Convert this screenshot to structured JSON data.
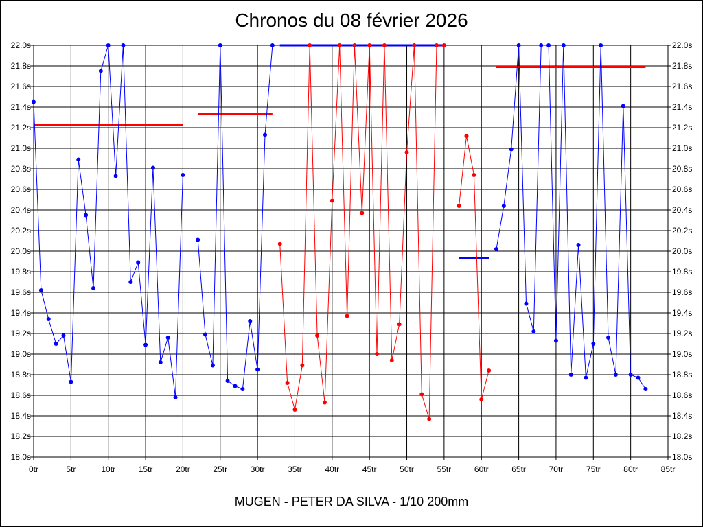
{
  "chart_data": {
    "type": "line",
    "title": "Chronos du 08 février 2026",
    "subtitle": "MUGEN - PETER DA SILVA - 1/10 200mm",
    "xlabel": "",
    "ylabel": "",
    "xlim": [
      0,
      85
    ],
    "ylim": [
      18.0,
      22.0
    ],
    "grid": true,
    "x_ticks": [
      "0tr",
      "5tr",
      "10tr",
      "15tr",
      "20tr",
      "25tr",
      "30tr",
      "35tr",
      "40tr",
      "45tr",
      "50tr",
      "55tr",
      "60tr",
      "65tr",
      "70tr",
      "75tr",
      "80tr",
      "85tr"
    ],
    "y_ticks": [
      "18.0s",
      "18.2s",
      "18.4s",
      "18.6s",
      "18.8s",
      "19.0s",
      "19.2s",
      "19.4s",
      "19.6s",
      "19.8s",
      "20.0s",
      "20.2s",
      "20.4s",
      "20.6s",
      "20.8s",
      "21.0s",
      "21.2s",
      "21.4s",
      "21.6s",
      "21.8s",
      "22.0s"
    ],
    "series": [
      {
        "color": "#0000ff",
        "x": [
          0,
          1,
          2,
          3,
          4,
          5,
          6,
          7,
          8,
          9,
          10,
          11,
          12,
          13,
          14,
          15,
          16,
          17,
          18,
          19,
          20
        ],
        "values": [
          21.45,
          19.62,
          19.34,
          19.1,
          19.18,
          18.73,
          20.89,
          20.35,
          19.64,
          21.75,
          22.0,
          20.73,
          22.0,
          19.7,
          19.89,
          19.09,
          20.81,
          18.92,
          19.16,
          18.58,
          20.74
        ]
      },
      {
        "color": "#0000ff",
        "x": [
          22,
          23,
          24,
          25,
          26,
          27,
          28,
          29,
          30,
          31,
          32
        ],
        "values": [
          20.11,
          19.19,
          18.89,
          22.0,
          18.74,
          18.69,
          18.66,
          19.32,
          18.85,
          21.13,
          22.0
        ]
      },
      {
        "color": "#ff0000",
        "x": [
          33,
          34,
          35,
          36,
          37,
          38,
          39,
          40,
          41,
          42,
          43,
          44,
          45,
          46,
          47,
          48,
          49,
          50,
          51,
          52,
          53,
          54,
          55
        ],
        "values": [
          20.07,
          18.72,
          18.46,
          18.89,
          22.0,
          19.18,
          18.53,
          20.49,
          22.0,
          19.37,
          22.0,
          20.37,
          22.0,
          19.0,
          22.0,
          18.94,
          19.29,
          20.96,
          22.0,
          18.61,
          18.37,
          22.0,
          22.0
        ]
      },
      {
        "color": "#ff0000",
        "x": [
          57,
          58,
          59,
          60,
          61
        ],
        "values": [
          20.44,
          21.12,
          20.74,
          18.56,
          18.84
        ]
      },
      {
        "color": "#0000ff",
        "x": [
          62,
          63,
          64,
          65,
          66,
          67,
          68,
          69,
          70,
          71,
          72,
          73,
          74,
          75,
          76,
          77,
          78,
          79,
          80,
          81,
          82
        ],
        "values": [
          20.02,
          20.44,
          20.99,
          22.0,
          19.49,
          19.22,
          22.0,
          22.0,
          19.13,
          22.0,
          18.8,
          20.06,
          18.77,
          19.1,
          22.0,
          19.16,
          18.8,
          21.41,
          18.8,
          18.77,
          18.66
        ]
      }
    ],
    "averages": [
      {
        "color": "#ff0000",
        "x": [
          0,
          20
        ],
        "value": 21.23
      },
      {
        "color": "#ff0000",
        "x": [
          22,
          32
        ],
        "value": 21.33
      },
      {
        "color": "#0000ff",
        "x": [
          33,
          55
        ],
        "value": 22.0
      },
      {
        "color": "#0000ff",
        "x": [
          57,
          61
        ],
        "value": 19.93
      },
      {
        "color": "#ff0000",
        "x": [
          62,
          82
        ],
        "value": 21.79
      }
    ]
  }
}
